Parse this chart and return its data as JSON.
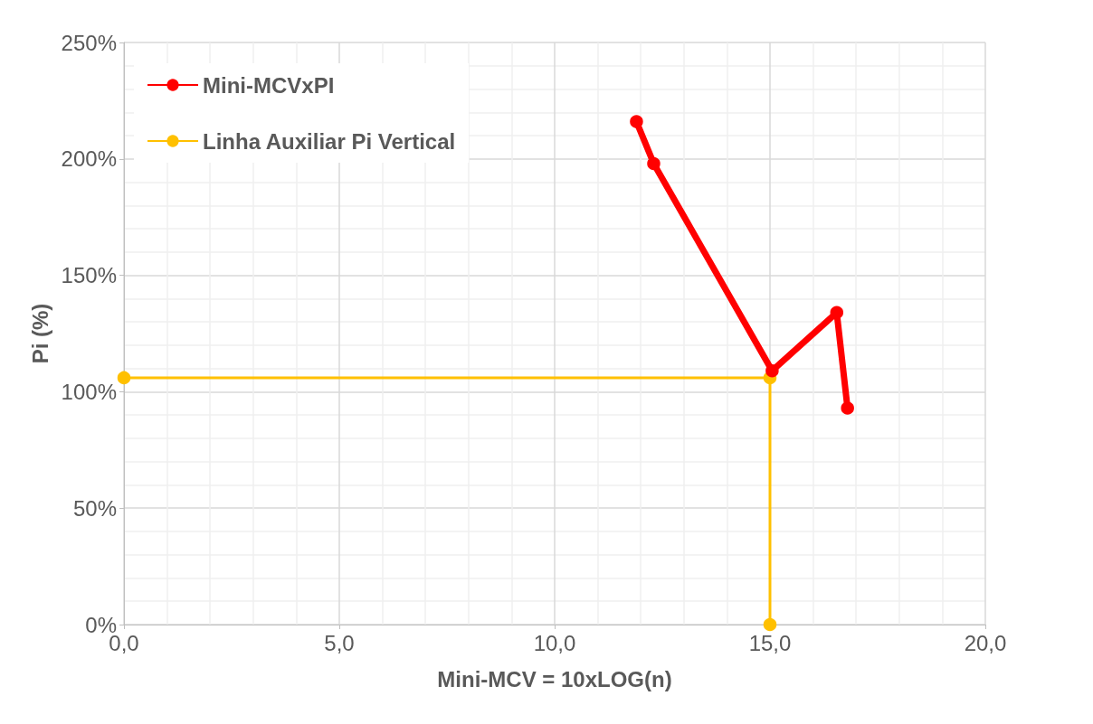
{
  "chart_data": {
    "type": "line",
    "xlabel": "Mini-MCV = 10xLOG(n)",
    "ylabel": "Pi (%)",
    "series": [
      {
        "name": "Mini-MCVxPI",
        "color": "#ff0000",
        "x": [
          11.9,
          12.3,
          15.05,
          16.55,
          16.8
        ],
        "values": [
          216,
          198,
          109,
          134,
          93
        ]
      },
      {
        "name": "Linha Auxiliar Pi Vertical",
        "color": "#ffc000",
        "x": [
          0,
          15,
          15
        ],
        "values": [
          106,
          106,
          0
        ]
      }
    ],
    "xlim": [
      0,
      20
    ],
    "xticks": [
      {
        "value": 0,
        "label": "0,0"
      },
      {
        "value": 5,
        "label": "5,0"
      },
      {
        "value": 10,
        "label": "10,0"
      },
      {
        "value": 15,
        "label": "15,0"
      },
      {
        "value": 20,
        "label": "20,0"
      }
    ],
    "ylim": [
      0,
      250
    ],
    "yticks": [
      {
        "value": 0,
        "label": "0%"
      },
      {
        "value": 50,
        "label": "50%"
      },
      {
        "value": 100,
        "label": "100%"
      },
      {
        "value": 150,
        "label": "150%"
      },
      {
        "value": 200,
        "label": "200%"
      },
      {
        "value": 250,
        "label": "250%"
      }
    ],
    "grid": true,
    "legend": "top left",
    "marker": "circle"
  }
}
